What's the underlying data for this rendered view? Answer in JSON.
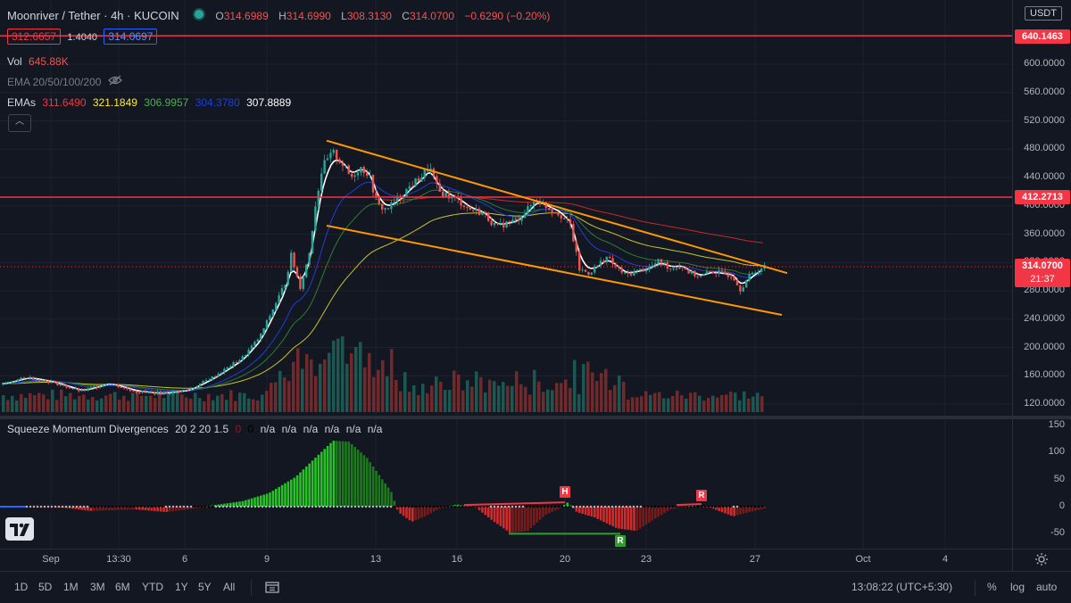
{
  "header": {
    "symbol": "Moonriver / Tether · 4h · KUCOIN",
    "ohlc": [
      {
        "k": "O",
        "v": "314.6989"
      },
      {
        "k": "H",
        "v": "314.6990"
      },
      {
        "k": "L",
        "v": "308.3130"
      },
      {
        "k": "C",
        "v": "314.0700"
      }
    ],
    "change": "−0.6290 (−0.20%)"
  },
  "quote": {
    "bid": "312.6657",
    "spread": "1.4040",
    "ask": "314.0697"
  },
  "volume": {
    "label": "Vol",
    "value": "645.88K"
  },
  "ema_ribbon": {
    "label": "EMA 20/50/100/200"
  },
  "emas": {
    "label": "EMAs",
    "values": [
      {
        "v": "311.6490",
        "color": "#f23645"
      },
      {
        "v": "321.1849",
        "color": "#ffeb3b"
      },
      {
        "v": "306.9957",
        "color": "#4caf50"
      },
      {
        "v": "304.3780",
        "color": "#1e3fd8"
      },
      {
        "v": "307.8889",
        "color": "#ffffff"
      }
    ]
  },
  "oscillator": {
    "title": "Squeeze Momentum Divergences",
    "params": "20 2 20 1.5",
    "v1": "0",
    "v2": "0",
    "na": [
      "n/a",
      "n/a",
      "n/a",
      "n/a",
      "n/a",
      "n/a"
    ]
  },
  "price_axis": {
    "currency": "USDT",
    "ticks": [
      "600.0000",
      "560.0000",
      "520.0000",
      "480.0000",
      "440.0000",
      "400.0000",
      "360.0000",
      "320.0000",
      "280.0000",
      "240.0000",
      "200.0000",
      "160.0000",
      "120.0000"
    ],
    "tags": {
      "top": "640.1463",
      "mid": "412.2713",
      "last_price": "314.0700",
      "countdown": "21:37"
    }
  },
  "osc_axis": {
    "ticks": [
      "150",
      "100",
      "50",
      "0",
      "-50"
    ]
  },
  "time_axis": {
    "ticks": [
      "Sep",
      "13:30",
      "6",
      "9",
      "13",
      "16",
      "20",
      "23",
      "27",
      "Oct",
      "4"
    ]
  },
  "markers": {
    "h": "H",
    "r1": "R",
    "r2": "R",
    "r_bull": "R"
  },
  "bottom_bar": {
    "timeframes": [
      "1D",
      "5D",
      "1M",
      "3M",
      "6M",
      "YTD",
      "1Y",
      "5Y",
      "All"
    ],
    "clock": "13:08:22 (UTC+5:30)",
    "percent": "%",
    "log": "log",
    "auto": "auto"
  },
  "colors": {
    "bg": "#131722",
    "up": "#26a69a",
    "down": "#ef5350",
    "hline": "#f23645",
    "channel": "#ff9800",
    "osc_up": "#26c226",
    "osc_down": "#d42a2a"
  },
  "chart_data": {
    "type": "candlestick",
    "price_range": [
      120,
      640
    ],
    "horizontal_lines": [
      640.1463,
      412.2713
    ],
    "channel": {
      "upper": [
        [
          366,
          492
        ],
        [
          882,
          305
        ]
      ],
      "lower": [
        [
          366,
          372
        ],
        [
          876,
          246
        ]
      ]
    },
    "osc_range": [
      -55,
      155
    ]
  }
}
